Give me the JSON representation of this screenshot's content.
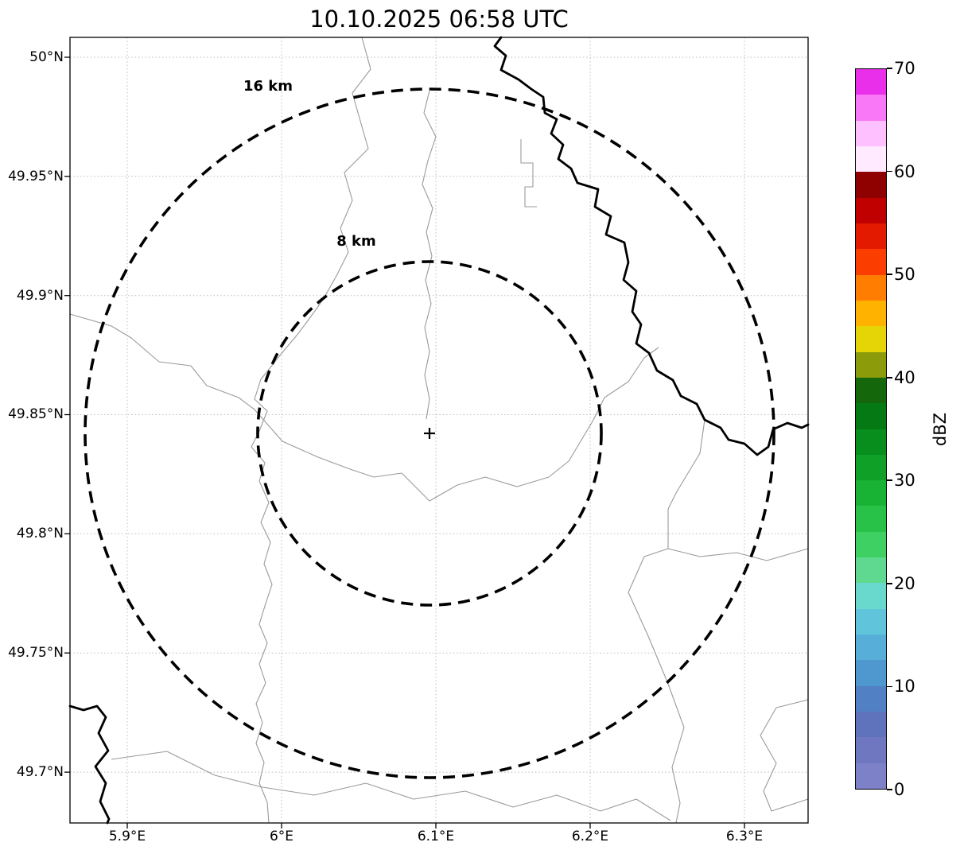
{
  "title": "10.10.2025 06:58 UTC",
  "map": {
    "range_ring_labels": {
      "outer": "16 km",
      "inner": "8 km"
    },
    "center_marker_symbol": "+"
  },
  "axes": {
    "lat_ticks": [
      "50°N",
      "49.95°N",
      "49.9°N",
      "49.85°N",
      "49.8°N",
      "49.75°N",
      "49.7°N"
    ],
    "lon_ticks": [
      "5.9°E",
      "6°E",
      "6.1°E",
      "6.2°E",
      "6.3°E"
    ]
  },
  "colorbar": {
    "label": "dBZ",
    "min": 0,
    "max": 70,
    "tick_labels": [
      "70",
      "60",
      "50",
      "40",
      "30",
      "20",
      "10",
      "0"
    ],
    "segments": [
      {
        "from": 0,
        "to": 2.5,
        "color": "#7d81c8"
      },
      {
        "from": 2.5,
        "to": 5,
        "color": "#6e77bf"
      },
      {
        "from": 5,
        "to": 7.5,
        "color": "#5f73bd"
      },
      {
        "from": 7.5,
        "to": 10,
        "color": "#5180c5"
      },
      {
        "from": 10,
        "to": 12.5,
        "color": "#4f97cf"
      },
      {
        "from": 12.5,
        "to": 15,
        "color": "#57aed9"
      },
      {
        "from": 15,
        "to": 17.5,
        "color": "#60c4db"
      },
      {
        "from": 17.5,
        "to": 20,
        "color": "#69d8cd"
      },
      {
        "from": 20,
        "to": 22.5,
        "color": "#5ed98f"
      },
      {
        "from": 22.5,
        "to": 25,
        "color": "#3fd064"
      },
      {
        "from": 25,
        "to": 27.5,
        "color": "#28c248"
      },
      {
        "from": 27.5,
        "to": 30,
        "color": "#18b234"
      },
      {
        "from": 30,
        "to": 32.5,
        "color": "#0ea027"
      },
      {
        "from": 32.5,
        "to": 35,
        "color": "#088e1d"
      },
      {
        "from": 35,
        "to": 37.5,
        "color": "#057a14"
      },
      {
        "from": 37.5,
        "to": 40,
        "color": "#14670b"
      },
      {
        "from": 40,
        "to": 42.5,
        "color": "#8b9b09"
      },
      {
        "from": 42.5,
        "to": 45,
        "color": "#e6d506"
      },
      {
        "from": 45,
        "to": 47.5,
        "color": "#ffb300"
      },
      {
        "from": 47.5,
        "to": 50,
        "color": "#ff7d00"
      },
      {
        "from": 50,
        "to": 52.5,
        "color": "#fb3d00"
      },
      {
        "from": 52.5,
        "to": 55,
        "color": "#e31a00"
      },
      {
        "from": 55,
        "to": 57.5,
        "color": "#c00000"
      },
      {
        "from": 57.5,
        "to": 60,
        "color": "#8f0000"
      },
      {
        "from": 60,
        "to": 62.5,
        "color": "#ffeaff"
      },
      {
        "from": 62.5,
        "to": 65,
        "color": "#ffc0ff"
      },
      {
        "from": 65,
        "to": 67.5,
        "color": "#f878f8"
      },
      {
        "from": 67.5,
        "to": 70,
        "color": "#e92fe9"
      }
    ]
  },
  "chart_data": {
    "type": "heatmap",
    "title": "10.10.2025 06:58 UTC",
    "xlabel": "",
    "ylabel": "",
    "x_ticks": [
      "5.9°E",
      "6°E",
      "6.1°E",
      "6.2°E",
      "6.3°E"
    ],
    "y_ticks": [
      "50°N",
      "49.95°N",
      "49.9°N",
      "49.85°N",
      "49.8°N",
      "49.75°N",
      "49.7°N"
    ],
    "xlim_lon_deg_e": [
      5.863,
      6.341
    ],
    "ylim_lat_deg_n": [
      49.679,
      50.008
    ],
    "grid": true,
    "values": [],
    "note": "weather radar reflectivity map, no echoes visible (blank field)",
    "radar_center": {
      "lon_deg_e": 6.095,
      "lat_deg_n": 49.842
    },
    "range_rings_km": [
      8,
      16
    ],
    "colorbar": {
      "label": "dBZ",
      "min": 0,
      "max": 70,
      "ticks": [
        0,
        10,
        20,
        30,
        40,
        50,
        60,
        70
      ]
    }
  }
}
